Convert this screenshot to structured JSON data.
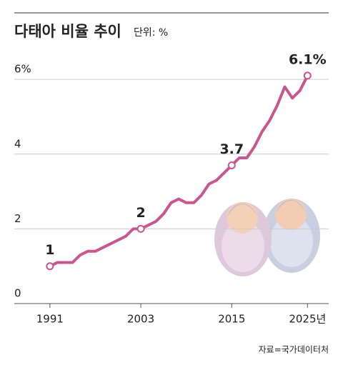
{
  "chart_data": {
    "type": "line",
    "title": "다태아 비율 추이",
    "subtitle": "단위: %",
    "source": "자료=국가데이터처",
    "x": [
      1991,
      1992,
      1993,
      1994,
      1995,
      1996,
      1997,
      1998,
      1999,
      2000,
      2001,
      2002,
      2003,
      2004,
      2005,
      2006,
      2007,
      2008,
      2009,
      2010,
      2011,
      2012,
      2013,
      2014,
      2015,
      2016,
      2017,
      2018,
      2019,
      2020,
      2021,
      2022,
      2023,
      2024,
      2025
    ],
    "series": [
      {
        "color": "#c8578f",
        "values": [
          1.0,
          1.1,
          1.1,
          1.1,
          1.3,
          1.4,
          1.4,
          1.5,
          1.6,
          1.7,
          1.8,
          2.0,
          2.0,
          2.1,
          2.2,
          2.4,
          2.7,
          2.8,
          2.7,
          2.7,
          2.9,
          3.2,
          3.3,
          3.5,
          3.7,
          3.9,
          3.9,
          4.2,
          4.6,
          4.9,
          5.3,
          5.8,
          5.5,
          5.7,
          6.1
        ]
      }
    ],
    "annotations": [
      {
        "x": 1991,
        "value": 1,
        "label": "1"
      },
      {
        "x": 2003,
        "value": 2,
        "label": "2"
      },
      {
        "x": 2015,
        "value": 3.7,
        "label": "3.7"
      },
      {
        "x": 2025,
        "value": 6.1,
        "label": "6.1%"
      }
    ],
    "xlim": [
      1986.3,
      2027.8
    ],
    "ylim": [
      0,
      6.5
    ],
    "xticks": [
      1991,
      2003,
      2015,
      {
        "value": 2025,
        "label": "2025년"
      }
    ],
    "yticks": [
      0,
      2,
      4,
      {
        "value": 6,
        "label": "6%"
      }
    ],
    "grid": true
  }
}
